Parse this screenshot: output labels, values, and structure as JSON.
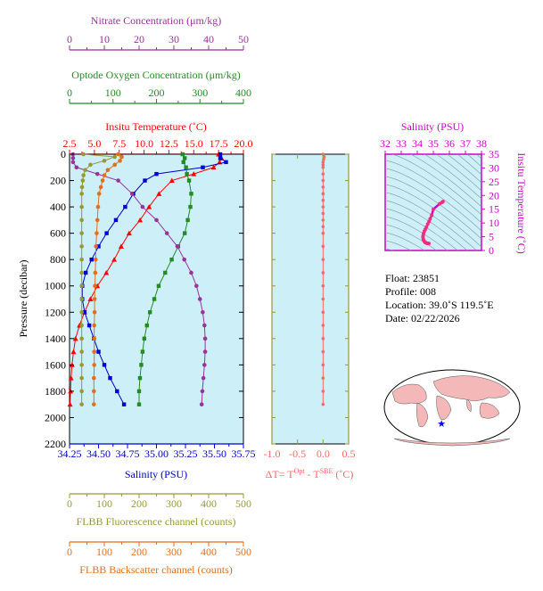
{
  "axes": {
    "nitrate": {
      "label": "Nitrate Concentration (μm/kg)",
      "ticks": [
        "0",
        "10",
        "20",
        "30",
        "40",
        "50"
      ],
      "range": [
        0,
        50
      ],
      "color": "#993399"
    },
    "oxygen": {
      "label": "Optode Oxygen Concentration (μm/kg)",
      "ticks": [
        "0",
        "100",
        "200",
        "300",
        "400"
      ],
      "range": [
        0,
        400
      ],
      "color": "#228B22"
    },
    "temperature": {
      "label": "Insitu Temperature (˚C)",
      "ticks": [
        "2.5",
        "5.0",
        "7.5",
        "10.0",
        "12.5",
        "15.0",
        "17.5",
        "20.0"
      ],
      "range": [
        2.5,
        20
      ],
      "color": "#ff0000"
    },
    "pressure": {
      "label": "Pressure (decibar)",
      "ticks": [
        "0",
        "200",
        "400",
        "600",
        "800",
        "1000",
        "1200",
        "1400",
        "1600",
        "1800",
        "2000",
        "2200"
      ],
      "range": [
        0,
        2200
      ],
      "color": "#000000"
    },
    "salinity": {
      "label": "Salinity (PSU)",
      "ticks": [
        "34.25",
        "34.50",
        "34.75",
        "35.00",
        "35.25",
        "35.50",
        "35.75"
      ],
      "range": [
        34.25,
        35.75
      ],
      "color": "#0000cc"
    },
    "fluorescence": {
      "label": "FLBB Fluorescence channel (counts)",
      "ticks": [
        "0",
        "100",
        "200",
        "300",
        "400",
        "500"
      ],
      "range": [
        0,
        500
      ],
      "color": "#999933"
    },
    "backscatter": {
      "label": "FLBB Backscatter channel (counts)",
      "ticks": [
        "0",
        "100",
        "200",
        "300",
        "400",
        "500"
      ],
      "range": [
        0,
        500
      ],
      "color": "#e06f1f"
    },
    "delta_t": {
      "label_main": "ΔT= T",
      "sup1": "Opt",
      "label_mid": " - T",
      "sup2": "SBE",
      "label_end": " (˚C)",
      "ticks": [
        "-1.0",
        "-0.5",
        "0.0",
        "0.5"
      ],
      "range": [
        -1.0,
        0.5
      ],
      "color": "#ff6666"
    },
    "ts_salinity": {
      "label": "Salinity (PSU)",
      "ticks": [
        "32",
        "33",
        "34",
        "35",
        "36",
        "37",
        "38"
      ],
      "range": [
        32,
        38
      ],
      "color": "#cc00cc"
    },
    "ts_temperature": {
      "label": "Insitu Temperature (˚C)",
      "ticks": [
        "0",
        "5",
        "10",
        "15",
        "20",
        "25",
        "30",
        "35"
      ],
      "range": [
        0,
        35
      ],
      "color": "#cc00cc"
    }
  },
  "info": {
    "float": "Float:  23851",
    "profile": "Profile:  008",
    "location": "Location:  39.0˚S  119.5˚E",
    "date": "Date:  02/22/2026"
  },
  "colors": {
    "plot_bg": "#cceff8",
    "map_land": "#f4b8b8",
    "map_ocean": "#ffffff",
    "marker": "#0000ff"
  },
  "chart_data": {
    "type": "line",
    "y_axis": "pressure",
    "y_reversed": true,
    "series": [
      {
        "axis": "temperature",
        "color": "#ff0000",
        "marker": "triangle",
        "points": [
          [
            17.5,
            0
          ],
          [
            17.8,
            30
          ],
          [
            17.6,
            60
          ],
          [
            17.0,
            100
          ],
          [
            15.0,
            150
          ],
          [
            12.8,
            200
          ],
          [
            11.5,
            300
          ],
          [
            10.5,
            400
          ],
          [
            9.6,
            500
          ],
          [
            8.5,
            600
          ],
          [
            7.7,
            700
          ],
          [
            7.0,
            800
          ],
          [
            6.2,
            900
          ],
          [
            5.3,
            1000
          ],
          [
            4.6,
            1100
          ],
          [
            4.0,
            1200
          ],
          [
            3.5,
            1300
          ],
          [
            3.1,
            1400
          ],
          [
            2.9,
            1500
          ],
          [
            2.75,
            1600
          ],
          [
            2.65,
            1700
          ],
          [
            2.6,
            1800
          ],
          [
            2.55,
            1900
          ]
        ]
      },
      {
        "axis": "salinity",
        "color": "#0000cc",
        "marker": "square",
        "points": [
          [
            35.55,
            0
          ],
          [
            35.55,
            30
          ],
          [
            35.6,
            60
          ],
          [
            35.4,
            100
          ],
          [
            35.0,
            150
          ],
          [
            34.9,
            200
          ],
          [
            34.8,
            300
          ],
          [
            34.73,
            400
          ],
          [
            34.65,
            500
          ],
          [
            34.57,
            600
          ],
          [
            34.5,
            700
          ],
          [
            34.44,
            800
          ],
          [
            34.39,
            900
          ],
          [
            34.36,
            1000
          ],
          [
            34.36,
            1100
          ],
          [
            34.38,
            1200
          ],
          [
            34.42,
            1300
          ],
          [
            34.46,
            1400
          ],
          [
            34.5,
            1500
          ],
          [
            34.55,
            1600
          ],
          [
            34.6,
            1700
          ],
          [
            34.66,
            1800
          ],
          [
            34.72,
            1900
          ]
        ]
      },
      {
        "axis": "oxygen",
        "color": "#228B22",
        "marker": "square",
        "points": [
          [
            260,
            0
          ],
          [
            265,
            30
          ],
          [
            262,
            60
          ],
          [
            268,
            100
          ],
          [
            270,
            150
          ],
          [
            275,
            200
          ],
          [
            280,
            300
          ],
          [
            278,
            400
          ],
          [
            272,
            500
          ],
          [
            265,
            600
          ],
          [
            250,
            700
          ],
          [
            235,
            800
          ],
          [
            220,
            900
          ],
          [
            205,
            1000
          ],
          [
            195,
            1100
          ],
          [
            185,
            1200
          ],
          [
            178,
            1300
          ],
          [
            172,
            1400
          ],
          [
            168,
            1500
          ],
          [
            165,
            1600
          ],
          [
            162,
            1700
          ],
          [
            160,
            1800
          ],
          [
            160,
            1900
          ]
        ]
      },
      {
        "axis": "nitrate",
        "color": "#993399",
        "marker": "circle",
        "points": [
          [
            1,
            0
          ],
          [
            1,
            30
          ],
          [
            1,
            60
          ],
          [
            2,
            100
          ],
          [
            8,
            150
          ],
          [
            14,
            200
          ],
          [
            18,
            300
          ],
          [
            21,
            400
          ],
          [
            25,
            500
          ],
          [
            28,
            600
          ],
          [
            31,
            700
          ],
          [
            33,
            800
          ],
          [
            35,
            900
          ],
          [
            36.5,
            1000
          ],
          [
            37.5,
            1100
          ],
          [
            38.3,
            1200
          ],
          [
            38.8,
            1300
          ],
          [
            39,
            1400
          ],
          [
            39,
            1500
          ],
          [
            38.8,
            1600
          ],
          [
            38.5,
            1700
          ],
          [
            38.2,
            1800
          ],
          [
            38,
            1900
          ]
        ]
      },
      {
        "axis": "fluorescence",
        "color": "#999933",
        "marker": "circle",
        "points": [
          [
            40,
            0
          ],
          [
            130,
            20
          ],
          [
            100,
            50
          ],
          [
            60,
            80
          ],
          [
            45,
            120
          ],
          [
            40,
            160
          ],
          [
            38,
            200
          ],
          [
            36,
            250
          ],
          [
            35,
            300
          ],
          [
            35,
            400
          ],
          [
            35,
            500
          ],
          [
            35,
            600
          ],
          [
            35,
            700
          ],
          [
            35,
            800
          ],
          [
            35,
            900
          ],
          [
            35,
            1000
          ],
          [
            35,
            1100
          ],
          [
            35,
            1200
          ],
          [
            35,
            1300
          ],
          [
            35,
            1400
          ],
          [
            35,
            1500
          ],
          [
            35,
            1600
          ],
          [
            35,
            1700
          ],
          [
            35,
            1800
          ],
          [
            35,
            1900
          ]
        ]
      },
      {
        "axis": "backscatter",
        "color": "#e06f1f",
        "marker": "circle",
        "points": [
          [
            140,
            0
          ],
          [
            150,
            20
          ],
          [
            145,
            50
          ],
          [
            130,
            80
          ],
          [
            110,
            120
          ],
          [
            100,
            160
          ],
          [
            95,
            200
          ],
          [
            90,
            250
          ],
          [
            85,
            300
          ],
          [
            82,
            400
          ],
          [
            80,
            500
          ],
          [
            78,
            600
          ],
          [
            76,
            700
          ],
          [
            75,
            800
          ],
          [
            74,
            900
          ],
          [
            73,
            1000
          ],
          [
            72,
            1100
          ],
          [
            72,
            1200
          ],
          [
            71,
            1300
          ],
          [
            71,
            1400
          ],
          [
            71,
            1500
          ],
          [
            71,
            1600
          ],
          [
            70,
            1700
          ],
          [
            70,
            1800
          ],
          [
            70,
            1900
          ]
        ]
      }
    ],
    "delta_t_points": [
      [
        0.0,
        0
      ],
      [
        0.02,
        20
      ],
      [
        0.01,
        40
      ],
      [
        0.0,
        60
      ],
      [
        0.0,
        80
      ],
      [
        0.0,
        100
      ],
      [
        0.0,
        150
      ],
      [
        0.0,
        200
      ],
      [
        0.0,
        250
      ],
      [
        0.0,
        300
      ],
      [
        0.0,
        350
      ],
      [
        0.0,
        400
      ],
      [
        0.0,
        450
      ],
      [
        0.0,
        500
      ],
      [
        0.0,
        550
      ],
      [
        0.0,
        600
      ],
      [
        0.0,
        700
      ],
      [
        0.0,
        800
      ],
      [
        0.0,
        900
      ],
      [
        0.0,
        1000
      ],
      [
        0.0,
        1100
      ],
      [
        0.0,
        1200
      ],
      [
        0.0,
        1300
      ],
      [
        0.0,
        1400
      ],
      [
        0.0,
        1500
      ],
      [
        0.0,
        1600
      ],
      [
        0.0,
        1700
      ],
      [
        0.0,
        1800
      ],
      [
        0.0,
        1900
      ]
    ],
    "ts_points": [
      [
        35.55,
        17.5
      ],
      [
        35.6,
        17.8
      ],
      [
        35.4,
        17.0
      ],
      [
        35.0,
        15.0
      ],
      [
        34.9,
        12.8
      ],
      [
        34.8,
        11.5
      ],
      [
        34.73,
        10.5
      ],
      [
        34.65,
        9.6
      ],
      [
        34.57,
        8.5
      ],
      [
        34.5,
        7.7
      ],
      [
        34.44,
        7.0
      ],
      [
        34.39,
        6.2
      ],
      [
        34.36,
        5.3
      ],
      [
        34.36,
        4.6
      ],
      [
        34.38,
        4.0
      ],
      [
        34.42,
        3.5
      ],
      [
        34.46,
        3.1
      ],
      [
        34.5,
        2.9
      ],
      [
        34.55,
        2.75
      ],
      [
        34.6,
        2.65
      ],
      [
        34.66,
        2.6
      ],
      [
        34.72,
        2.55
      ]
    ],
    "map_marker": {
      "lat": -39.0,
      "lon": 119.5
    }
  }
}
